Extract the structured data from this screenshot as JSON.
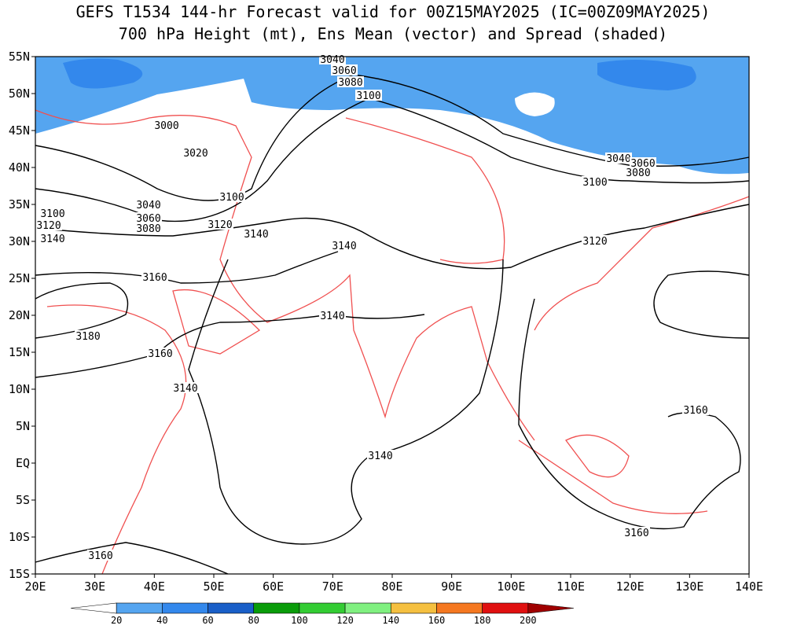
{
  "title": [
    "GEFS T1534 144-hr Forecast valid for 00Z15MAY2025 (IC=00Z09MAY2025)",
    "700 hPa Height (mt), Ens Mean (vector) and Spread (shaded)"
  ],
  "lat_labels": [
    "55N",
    "50N",
    "45N",
    "40N",
    "35N",
    "30N",
    "25N",
    "20N",
    "15N",
    "10N",
    "5N",
    "EQ",
    "5S",
    "10S",
    "15S"
  ],
  "lon_labels": [
    "20E",
    "30E",
    "40E",
    "50E",
    "60E",
    "70E",
    "80E",
    "90E",
    "100E",
    "110E",
    "120E",
    "130E",
    "140E"
  ],
  "colorbar": {
    "labels": [
      "20",
      "40",
      "60",
      "80",
      "100",
      "120",
      "140",
      "160",
      "180",
      "200"
    ],
    "colors": [
      "#ffffff",
      "#55a5f0",
      "#3388ec",
      "#1a5fc8",
      "#0a9c0a",
      "#33cc33",
      "#80f080",
      "#f5c040",
      "#f57820",
      "#e01010",
      "#a00000"
    ]
  },
  "contour_labels": [
    "3040",
    "3060",
    "3080",
    "3100",
    "3000",
    "3020",
    "3100",
    "3040",
    "3060",
    "3080",
    "3120",
    "3140",
    "3100",
    "3120",
    "3140",
    "3160",
    "3140",
    "3140",
    "3180",
    "3160",
    "3140",
    "3140",
    "3160",
    "3120",
    "3100",
    "3040",
    "3060",
    "3080",
    "3160",
    "3160"
  ]
}
